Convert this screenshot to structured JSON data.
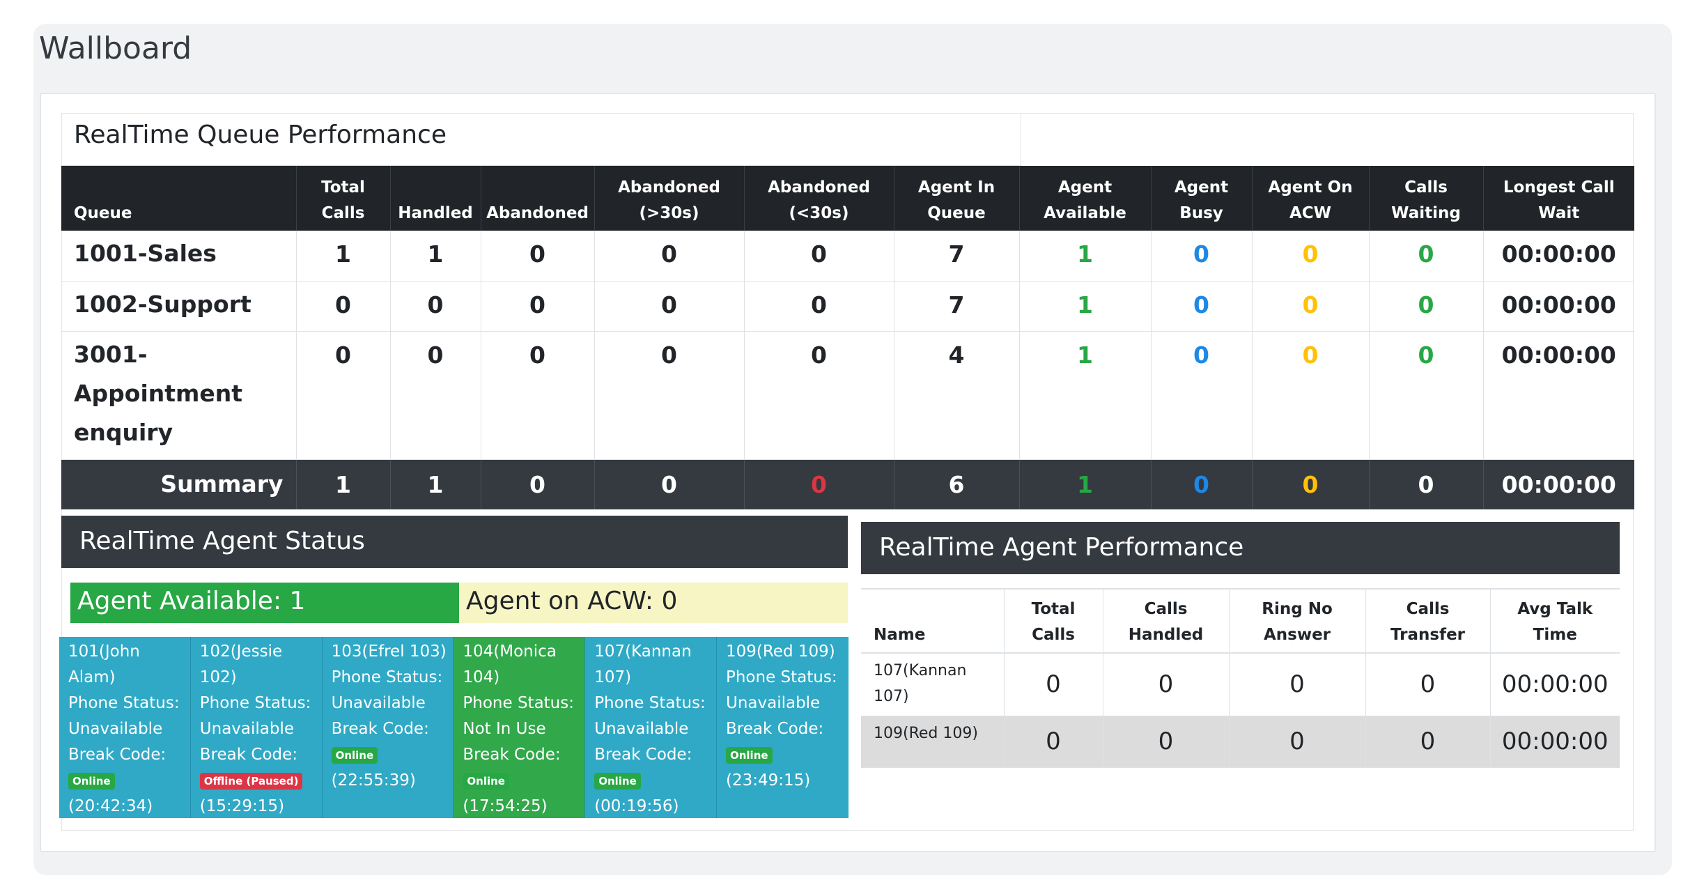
{
  "page": {
    "title": "Wallboard"
  },
  "queue_performance": {
    "title": "RealTime Queue Performance",
    "columns": [
      [
        "Queue",
        ""
      ],
      [
        "Total",
        "Calls"
      ],
      [
        "Handled",
        ""
      ],
      [
        "Abandoned",
        ""
      ],
      [
        "Abandoned",
        "(>30s)"
      ],
      [
        "Abandoned",
        "(<30s)"
      ],
      [
        "Agent In",
        "Queue"
      ],
      [
        "Agent",
        "Available"
      ],
      [
        "Agent",
        "Busy"
      ],
      [
        "Agent On",
        "ACW"
      ],
      [
        "Calls",
        "Waiting"
      ],
      [
        "Longest Call",
        "Wait"
      ]
    ],
    "rows": [
      {
        "queue": [
          "1001-Sales"
        ],
        "total": "1",
        "handled": "1",
        "abandoned": "0",
        "ab_gt30": "0",
        "ab_lt30": "0",
        "in_queue": "7",
        "available": "1",
        "busy": "0",
        "acw": "0",
        "waiting": "0",
        "longest": "00:00:00"
      },
      {
        "queue": [
          "1002-Support"
        ],
        "total": "0",
        "handled": "0",
        "abandoned": "0",
        "ab_gt30": "0",
        "ab_lt30": "0",
        "in_queue": "7",
        "available": "1",
        "busy": "0",
        "acw": "0",
        "waiting": "0",
        "longest": "00:00:00"
      },
      {
        "queue": [
          "3001-",
          "Appointment",
          "enquiry"
        ],
        "total": "0",
        "handled": "0",
        "abandoned": "0",
        "ab_gt30": "0",
        "ab_lt30": "0",
        "in_queue": "4",
        "available": "1",
        "busy": "0",
        "acw": "0",
        "waiting": "0",
        "longest": "00:00:00"
      }
    ],
    "summary": {
      "label": "Summary",
      "total": "1",
      "handled": "1",
      "abandoned": "0",
      "ab_gt30": "0",
      "ab_lt30": "0",
      "in_queue": "6",
      "available": "1",
      "busy": "0",
      "acw": "0",
      "waiting": "0",
      "longest": "00:00:00"
    }
  },
  "agent_status": {
    "title": "RealTime Agent Status",
    "available_label": "Agent Available:  1",
    "acw_label": "Agent on ACW:  0",
    "agents": [
      {
        "lines": [
          "101(John Alam)",
          "Phone Status:",
          "Unavailable",
          "Break Code:"
        ],
        "badge": "Online",
        "badge_type": "on",
        "time": "(20:42:34)",
        "state": "idle"
      },
      {
        "lines": [
          "102(Jessie 102)",
          "Phone Status:",
          "Unavailable",
          "Break Code:"
        ],
        "badge": "Offline (Paused)",
        "badge_type": "off",
        "time": "(15:29:15)",
        "state": "idle"
      },
      {
        "lines": [
          "103(Efrel 103)",
          "Phone Status:",
          "Unavailable",
          "Break Code:"
        ],
        "badge": "Online",
        "badge_type": "on",
        "time": "(22:55:39)",
        "state": "idle"
      },
      {
        "lines": [
          "104(Monica",
          "104)",
          "Phone Status:",
          "Not In Use",
          "Break Code:"
        ],
        "badge": "Online",
        "badge_type": "on",
        "time": "(17:54:25)",
        "state": "busy"
      },
      {
        "lines": [
          "107(Kannan",
          "107)",
          "Phone Status:",
          "Unavailable",
          "Break Code:"
        ],
        "badge": "Online",
        "badge_type": "on",
        "time": "(00:19:56)",
        "state": "idle"
      },
      {
        "lines": [
          "109(Red 109)",
          "Phone Status:",
          "Unavailable",
          "Break Code:"
        ],
        "badge": "Online",
        "badge_type": "on",
        "time": "(23:49:15)",
        "state": "idle"
      }
    ]
  },
  "agent_performance": {
    "title": "RealTime Agent Performance",
    "columns": [
      [
        "Name",
        ""
      ],
      [
        "Total",
        "Calls"
      ],
      [
        "Calls",
        "Handled"
      ],
      [
        "Ring No",
        "Answer"
      ],
      [
        "Calls",
        "Transfer"
      ],
      [
        "Avg Talk",
        "Time"
      ]
    ],
    "rows": [
      {
        "name": [
          "107(Kannan",
          "107)"
        ],
        "total": "0",
        "handled": "0",
        "rna": "0",
        "transfer": "0",
        "avg": "00:00:00"
      },
      {
        "name": [
          "109(Red 109)"
        ],
        "total": "0",
        "handled": "0",
        "rna": "0",
        "transfer": "0",
        "avg": "00:00:00"
      }
    ]
  },
  "colors": {
    "header_dark": "#212529",
    "summary_dark": "#343a40",
    "available_green": "#28a745",
    "busy_blue": "#1e88e5",
    "acw_yellow": "#ffc107",
    "alert_red": "#dc3545",
    "agent_tile_blue": "#2fa9c6",
    "agent_tile_green": "#31a84a",
    "acw_bar_bg": "#f7f5c3"
  }
}
